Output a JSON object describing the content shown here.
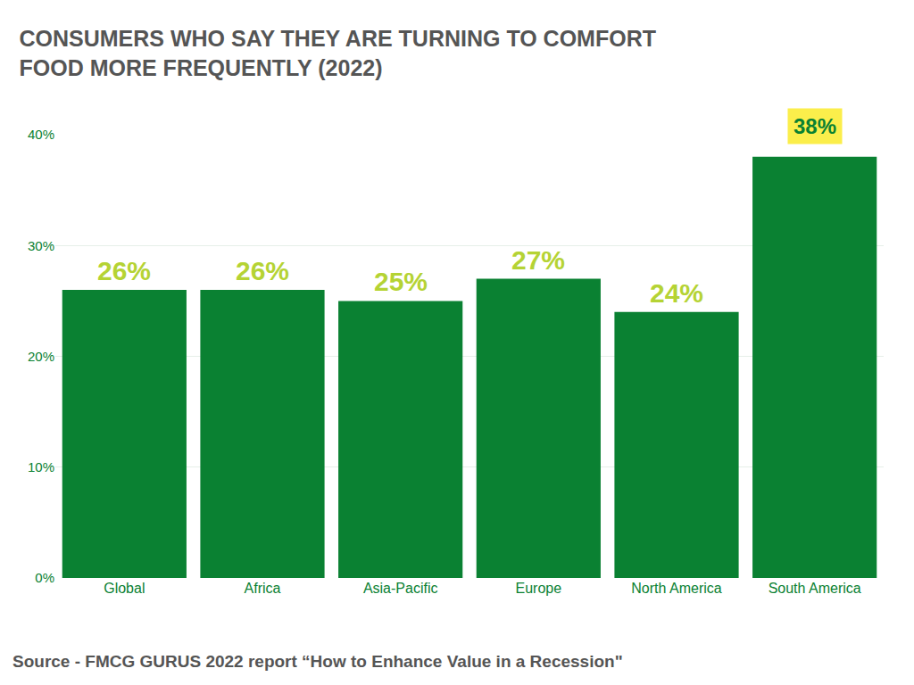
{
  "chart_data": {
    "type": "bar",
    "title": "CONSUMERS WHO SAY THEY ARE TURNING TO COMFORT\nFOOD MORE FREQUENTLY (2022)",
    "categories": [
      "Global",
      "Africa",
      "Asia-Pacific",
      "Europe",
      "North America",
      "South America"
    ],
    "values": [
      26,
      26,
      25,
      27,
      24,
      38
    ],
    "value_labels": [
      "26%",
      "26%",
      "25%",
      "27%",
      "24%",
      "38%"
    ],
    "color": "#0a8132",
    "ylim": [
      0,
      40
    ],
    "yticks": [
      {
        "value": 0,
        "label": "0%"
      },
      {
        "value": 10,
        "label": "10%"
      },
      {
        "value": 20,
        "label": "20%"
      },
      {
        "value": 30,
        "label": "30%"
      },
      {
        "value": 40,
        "label": "40%"
      }
    ],
    "grid": true,
    "data_labels": true,
    "source": "Source - FMCG GURUS 2022 report “How to Enhance Value in a Recession\""
  }
}
